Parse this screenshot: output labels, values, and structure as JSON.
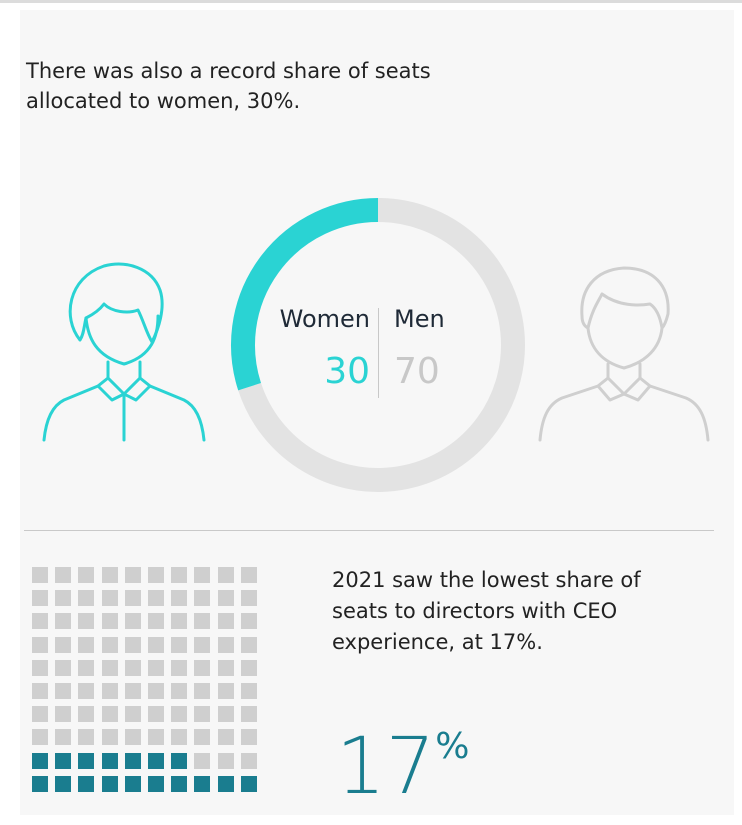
{
  "section1": {
    "headline": "There was also a record share of seats allocated to women, 30%."
  },
  "section2": {
    "headline": "2021 saw the lowest share of seats to directors with CEO experience, at 17%.",
    "big_value": "17",
    "big_unit": "%"
  },
  "colors": {
    "accent_teal": "#2ad3d3",
    "dark_teal": "#1a7d8f",
    "neutral_grey": "#cfcfcf",
    "ring_grey": "#e3e3e3"
  },
  "icons": [
    "woman-icon",
    "man-icon"
  ],
  "chart_data": [
    {
      "type": "pie",
      "categories": [
        "Women",
        "Men"
      ],
      "values": [
        30,
        70
      ],
      "value_labels": [
        "30",
        "70"
      ],
      "colors": [
        "#2ad3d3",
        "#e3e3e3"
      ],
      "title": ""
    },
    {
      "type": "waffle",
      "rows": 10,
      "cols": 10,
      "total": 100,
      "highlighted": 17,
      "colors": {
        "highlighted": "#1a7d8f",
        "other": "#cfcfcf"
      },
      "title": ""
    }
  ]
}
